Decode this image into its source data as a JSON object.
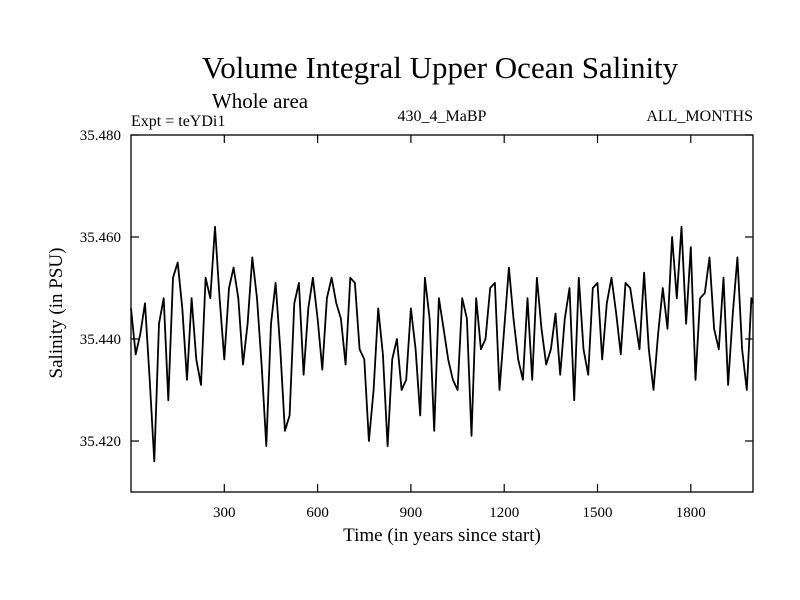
{
  "chart_data": {
    "type": "line",
    "title": "Volume Integral Upper Ocean Salinity",
    "subtitle": "Whole area",
    "annotations": {
      "left": "Expt = teYDi1",
      "center": "430_4_MaBP",
      "right": "ALL_MONTHS"
    },
    "xlabel": "Time (in years since start)",
    "ylabel": "Salinity (in PSU)",
    "xlim": [
      0,
      2000
    ],
    "ylim": [
      35.41,
      35.48
    ],
    "xticks": [
      300,
      600,
      900,
      1200,
      1500,
      1800
    ],
    "xtick_labels": [
      "300",
      "600",
      "900",
      "1200",
      "1500",
      "1800"
    ],
    "yticks": [
      35.42,
      35.44,
      35.46,
      35.48
    ],
    "ytick_labels": [
      "35.420",
      "35.440",
      "35.460",
      "35.480"
    ],
    "grid": false,
    "series": [
      {
        "name": "salinity",
        "color": "#000000",
        "x": [
          0,
          15,
          30,
          45,
          60,
          75,
          90,
          105,
          120,
          135,
          150,
          165,
          180,
          195,
          210,
          225,
          240,
          255,
          270,
          285,
          300,
          315,
          330,
          345,
          360,
          375,
          390,
          405,
          420,
          435,
          450,
          465,
          480,
          495,
          510,
          525,
          540,
          555,
          570,
          585,
          600,
          615,
          630,
          645,
          660,
          675,
          690,
          705,
          720,
          735,
          750,
          765,
          780,
          795,
          810,
          825,
          840,
          855,
          870,
          885,
          900,
          915,
          930,
          945,
          960,
          975,
          990,
          1005,
          1020,
          1035,
          1050,
          1065,
          1080,
          1095,
          1110,
          1125,
          1140,
          1155,
          1170,
          1185,
          1200,
          1215,
          1230,
          1245,
          1260,
          1275,
          1290,
          1305,
          1320,
          1335,
          1350,
          1365,
          1380,
          1395,
          1410,
          1425,
          1440,
          1455,
          1470,
          1485,
          1500,
          1515,
          1530,
          1545,
          1560,
          1575,
          1590,
          1605,
          1620,
          1635,
          1650,
          1665,
          1680,
          1695,
          1710,
          1725,
          1740,
          1755,
          1770,
          1785,
          1800,
          1815,
          1830,
          1845,
          1860,
          1875,
          1890,
          1905,
          1920,
          1935,
          1950,
          1965,
          1980,
          1995,
          2000
        ],
        "values": [
          35.446,
          35.437,
          35.441,
          35.447,
          35.432,
          35.416,
          35.443,
          35.448,
          35.428,
          35.452,
          35.455,
          35.446,
          35.432,
          35.448,
          35.436,
          35.431,
          35.452,
          35.448,
          35.462,
          35.448,
          35.436,
          35.45,
          35.454,
          35.448,
          35.435,
          35.443,
          35.456,
          35.448,
          35.435,
          35.419,
          35.443,
          35.451,
          35.438,
          35.422,
          35.425,
          35.447,
          35.451,
          35.433,
          35.446,
          35.452,
          35.444,
          35.434,
          35.448,
          35.452,
          35.447,
          35.444,
          35.435,
          35.452,
          35.451,
          35.438,
          35.436,
          35.42,
          35.43,
          35.446,
          35.437,
          35.419,
          35.436,
          35.44,
          35.43,
          35.432,
          35.446,
          35.438,
          35.425,
          35.452,
          35.444,
          35.422,
          35.448,
          35.442,
          35.436,
          35.432,
          35.43,
          35.448,
          35.444,
          35.421,
          35.448,
          35.438,
          35.44,
          35.45,
          35.451,
          35.43,
          35.442,
          35.454,
          35.444,
          35.436,
          35.432,
          35.448,
          35.432,
          35.452,
          35.442,
          35.435,
          35.438,
          35.445,
          35.433,
          35.444,
          35.45,
          35.428,
          35.452,
          35.438,
          35.433,
          35.45,
          35.451,
          35.436,
          35.447,
          35.452,
          35.445,
          35.437,
          35.451,
          35.45,
          35.444,
          35.438,
          35.453,
          35.438,
          35.43,
          35.441,
          35.45,
          35.442,
          35.46,
          35.448,
          35.462,
          35.443,
          35.458,
          35.432,
          35.448,
          35.449,
          35.456,
          35.442,
          35.438,
          35.452,
          35.431,
          35.445,
          35.456,
          35.438,
          35.43,
          35.448,
          35.447
        ]
      }
    ]
  }
}
